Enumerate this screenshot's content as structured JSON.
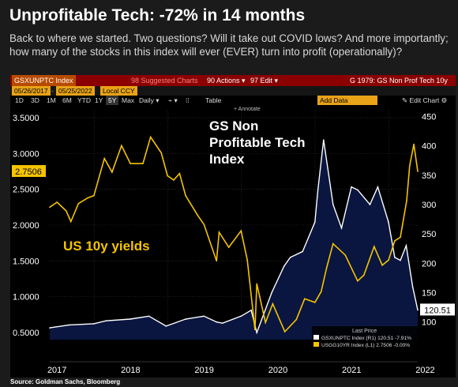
{
  "header": {
    "title": "Unprofitable Tech: -72% in 14 months",
    "subtitle": "Back to where we started. Two questions? Will it take out COVID lows? And more importantly; how many of the stocks in this index will ever (EVER) turn into profit (operationally)?"
  },
  "terminal": {
    "ticker": "GSXUNPTC Index",
    "suggested": "98 Suggested Charts",
    "actions": "90 Actions ▾",
    "edit": "97 Edit ▾",
    "chart_name": "G 1979: GS Non Prof Tech 10y",
    "date_from": "05/26/2017",
    "date_to": "05/25/2022",
    "currency": "Local CCY",
    "periods": [
      "1D",
      "3D",
      "1M",
      "6M",
      "YTD",
      "1Y",
      "5Y",
      "Max"
    ],
    "active_period": "5Y",
    "frequency": "Daily ▾",
    "table": "Table",
    "annotate": "Annotate",
    "add_data": "Add Data",
    "edit_chart": "✎ Edit Chart ⚙",
    "icons": {
      "chart_type": "line-chart-icon",
      "more": "more-icon",
      "settings": "gear-icon"
    }
  },
  "colors": {
    "yield": "#f5c400",
    "index": "#ffffff",
    "area": "#0a1640",
    "background": "#000000",
    "grid": "#3a3a3a"
  },
  "chart_data": {
    "type": "line",
    "title": "GS Non Profitable Tech Index",
    "annotation": "US 10y yields",
    "x_ticks": [
      "2017",
      "2018",
      "2019",
      "2020",
      "2021",
      "2022"
    ],
    "x_range": [
      "2017-05-26",
      "2022-05-25"
    ],
    "left_axis": {
      "ticks": [
        "3.5000",
        "3.0000",
        "2.5000",
        "2.0000",
        "1.5000",
        "1.0000",
        "0.5000"
      ],
      "ylim": [
        0.4,
        3.6
      ]
    },
    "right_axis": {
      "ticks": [
        "450",
        "400",
        "350",
        "300",
        "250",
        "200",
        "150",
        "100"
      ],
      "ylim": [
        70,
        460
      ]
    },
    "last_labels": {
      "yield": "2.7506",
      "index": "120.51"
    },
    "legend": {
      "header": "Last Price",
      "entries": [
        {
          "label": "GSXUNPTC Index  (R1) 120.51  -7.91%"
        },
        {
          "label": "USGG10YR Index  (L1) 2.7506  -0.00%"
        }
      ]
    },
    "series": [
      {
        "name": "USGG10YR Index",
        "axis": "left",
        "points": [
          [
            "2017-05-26",
            2.25
          ],
          [
            "2017-07-01",
            2.32
          ],
          [
            "2017-08-15",
            2.2
          ],
          [
            "2017-09-08",
            2.05
          ],
          [
            "2017-10-15",
            2.3
          ],
          [
            "2017-11-30",
            2.38
          ],
          [
            "2017-12-31",
            2.41
          ],
          [
            "2018-01-31",
            2.72
          ],
          [
            "2018-02-21",
            2.93
          ],
          [
            "2018-03-31",
            2.74
          ],
          [
            "2018-05-17",
            3.11
          ],
          [
            "2018-06-30",
            2.86
          ],
          [
            "2018-08-31",
            2.86
          ],
          [
            "2018-10-08",
            3.23
          ],
          [
            "2018-11-30",
            3.01
          ],
          [
            "2018-12-31",
            2.69
          ],
          [
            "2019-01-31",
            2.63
          ],
          [
            "2019-03-01",
            2.72
          ],
          [
            "2019-03-31",
            2.41
          ],
          [
            "2019-05-31",
            2.13
          ],
          [
            "2019-06-30",
            2.01
          ],
          [
            "2019-08-31",
            1.5
          ],
          [
            "2019-09-13",
            1.9
          ],
          [
            "2019-10-31",
            1.69
          ],
          [
            "2019-12-31",
            1.92
          ],
          [
            "2020-01-31",
            1.51
          ],
          [
            "2020-03-09",
            0.54
          ],
          [
            "2020-03-18",
            1.18
          ],
          [
            "2020-04-30",
            0.64
          ],
          [
            "2020-06-05",
            0.9
          ],
          [
            "2020-08-04",
            0.51
          ],
          [
            "2020-09-30",
            0.68
          ],
          [
            "2020-11-10",
            0.97
          ],
          [
            "2020-12-31",
            0.92
          ],
          [
            "2021-01-31",
            1.07
          ],
          [
            "2021-02-28",
            1.41
          ],
          [
            "2021-03-31",
            1.74
          ],
          [
            "2021-05-31",
            1.58
          ],
          [
            "2021-07-31",
            1.22
          ],
          [
            "2021-08-31",
            1.3
          ],
          [
            "2021-10-21",
            1.7
          ],
          [
            "2021-11-30",
            1.44
          ],
          [
            "2021-12-31",
            1.51
          ],
          [
            "2022-01-31",
            1.78
          ],
          [
            "2022-02-28",
            1.83
          ],
          [
            "2022-03-31",
            2.34
          ],
          [
            "2022-04-15",
            2.83
          ],
          [
            "2022-05-06",
            3.13
          ],
          [
            "2022-05-25",
            2.75
          ]
        ]
      },
      {
        "name": "GSXUNPTC Index",
        "axis": "right",
        "points": [
          [
            "2017-05-26",
            90
          ],
          [
            "2017-08-31",
            95
          ],
          [
            "2017-12-31",
            97
          ],
          [
            "2018-03-01",
            102
          ],
          [
            "2018-06-30",
            105
          ],
          [
            "2018-09-30",
            110
          ],
          [
            "2018-12-24",
            93
          ],
          [
            "2019-03-31",
            105
          ],
          [
            "2019-06-30",
            110
          ],
          [
            "2019-08-31",
            100
          ],
          [
            "2019-09-30",
            98
          ],
          [
            "2019-12-31",
            110
          ],
          [
            "2020-02-19",
            120
          ],
          [
            "2020-03-18",
            82
          ],
          [
            "2020-05-31",
            150
          ],
          [
            "2020-07-31",
            195
          ],
          [
            "2020-08-31",
            210
          ],
          [
            "2020-10-31",
            220
          ],
          [
            "2020-12-31",
            270
          ],
          [
            "2021-01-15",
            325
          ],
          [
            "2021-02-12",
            410
          ],
          [
            "2021-03-31",
            300
          ],
          [
            "2021-05-12",
            260
          ],
          [
            "2021-06-30",
            330
          ],
          [
            "2021-07-31",
            325
          ],
          [
            "2021-09-30",
            300
          ],
          [
            "2021-11-08",
            330
          ],
          [
            "2021-12-31",
            270
          ],
          [
            "2022-01-31",
            210
          ],
          [
            "2022-02-28",
            205
          ],
          [
            "2022-03-29",
            230
          ],
          [
            "2022-04-30",
            160
          ],
          [
            "2022-05-25",
            120.51
          ]
        ]
      }
    ]
  },
  "source": "Source: Goldman Sachs, Bloomberg"
}
